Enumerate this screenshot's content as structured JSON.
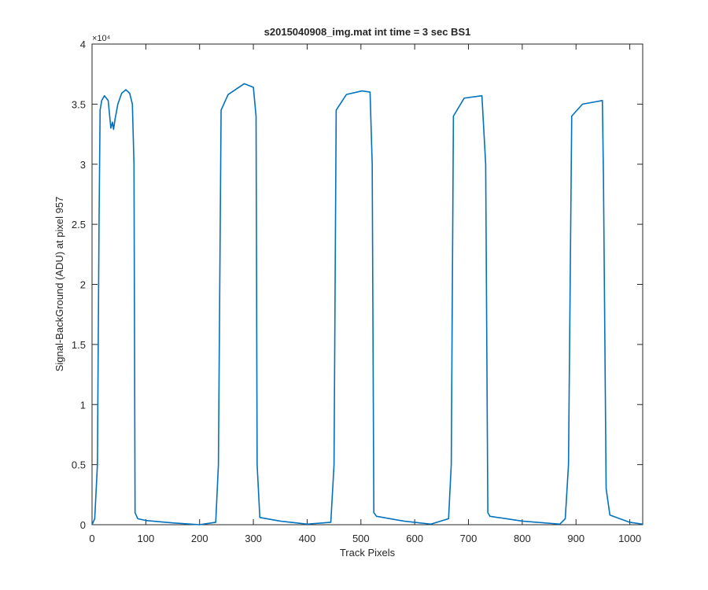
{
  "chart_data": {
    "type": "line",
    "title": "s2015040908_img.mat int time = 3 sec   BS1",
    "x_label": "Track Pixels",
    "y_label": "Signal-BackGround (ADU) at pixel 957",
    "y_exponent_label": "×10⁴",
    "xlim": [
      0,
      1024
    ],
    "xticks": [
      0,
      100,
      200,
      300,
      400,
      500,
      600,
      700,
      800,
      900,
      1000
    ],
    "ylim": [
      0,
      40000
    ],
    "yticks": [
      0,
      {
        "value": 5000,
        "label": "0.5"
      },
      {
        "value": 10000,
        "label": "1"
      },
      {
        "value": 15000,
        "label": "1.5"
      },
      {
        "value": 20000,
        "label": "2"
      },
      {
        "value": 25000,
        "label": "2.5"
      },
      {
        "value": 30000,
        "label": "3"
      },
      {
        "value": 35000,
        "label": "3.5"
      },
      {
        "value": 40000,
        "label": "4"
      }
    ],
    "grid": false,
    "series": [
      {
        "color": "#0072BD",
        "x": [
          0,
          5,
          10,
          13,
          15,
          18,
          23,
          30,
          35,
          38,
          40,
          43,
          48,
          55,
          63,
          70,
          75,
          78,
          80,
          85,
          100,
          150,
          200,
          230,
          235,
          240,
          253,
          283,
          300,
          305,
          307,
          312,
          350,
          400,
          444,
          450,
          454,
          473,
          502,
          517,
          521,
          524,
          529,
          580,
          630,
          663,
          668,
          672,
          692,
          725,
          732,
          736,
          740,
          800,
          870,
          880,
          886,
          892,
          912,
          949,
          951,
          956,
          963,
          1000,
          1024
        ],
        "y": [
          0,
          500,
          5000,
          25000,
          34500,
          35300,
          35700,
          35300,
          33000,
          33500,
          32900,
          33800,
          35000,
          35900,
          36200,
          35900,
          35000,
          30000,
          1000,
          500,
          350,
          150,
          0,
          200,
          5000,
          34500,
          35800,
          36700,
          36400,
          34000,
          5000,
          600,
          300,
          50,
          200,
          5000,
          34500,
          35800,
          36100,
          36000,
          30000,
          1000,
          700,
          300,
          50,
          500,
          5000,
          34000,
          35500,
          35700,
          30000,
          1000,
          700,
          300,
          50,
          500,
          5000,
          34000,
          35000,
          35300,
          29000,
          3000,
          800,
          200,
          50
        ]
      }
    ]
  }
}
